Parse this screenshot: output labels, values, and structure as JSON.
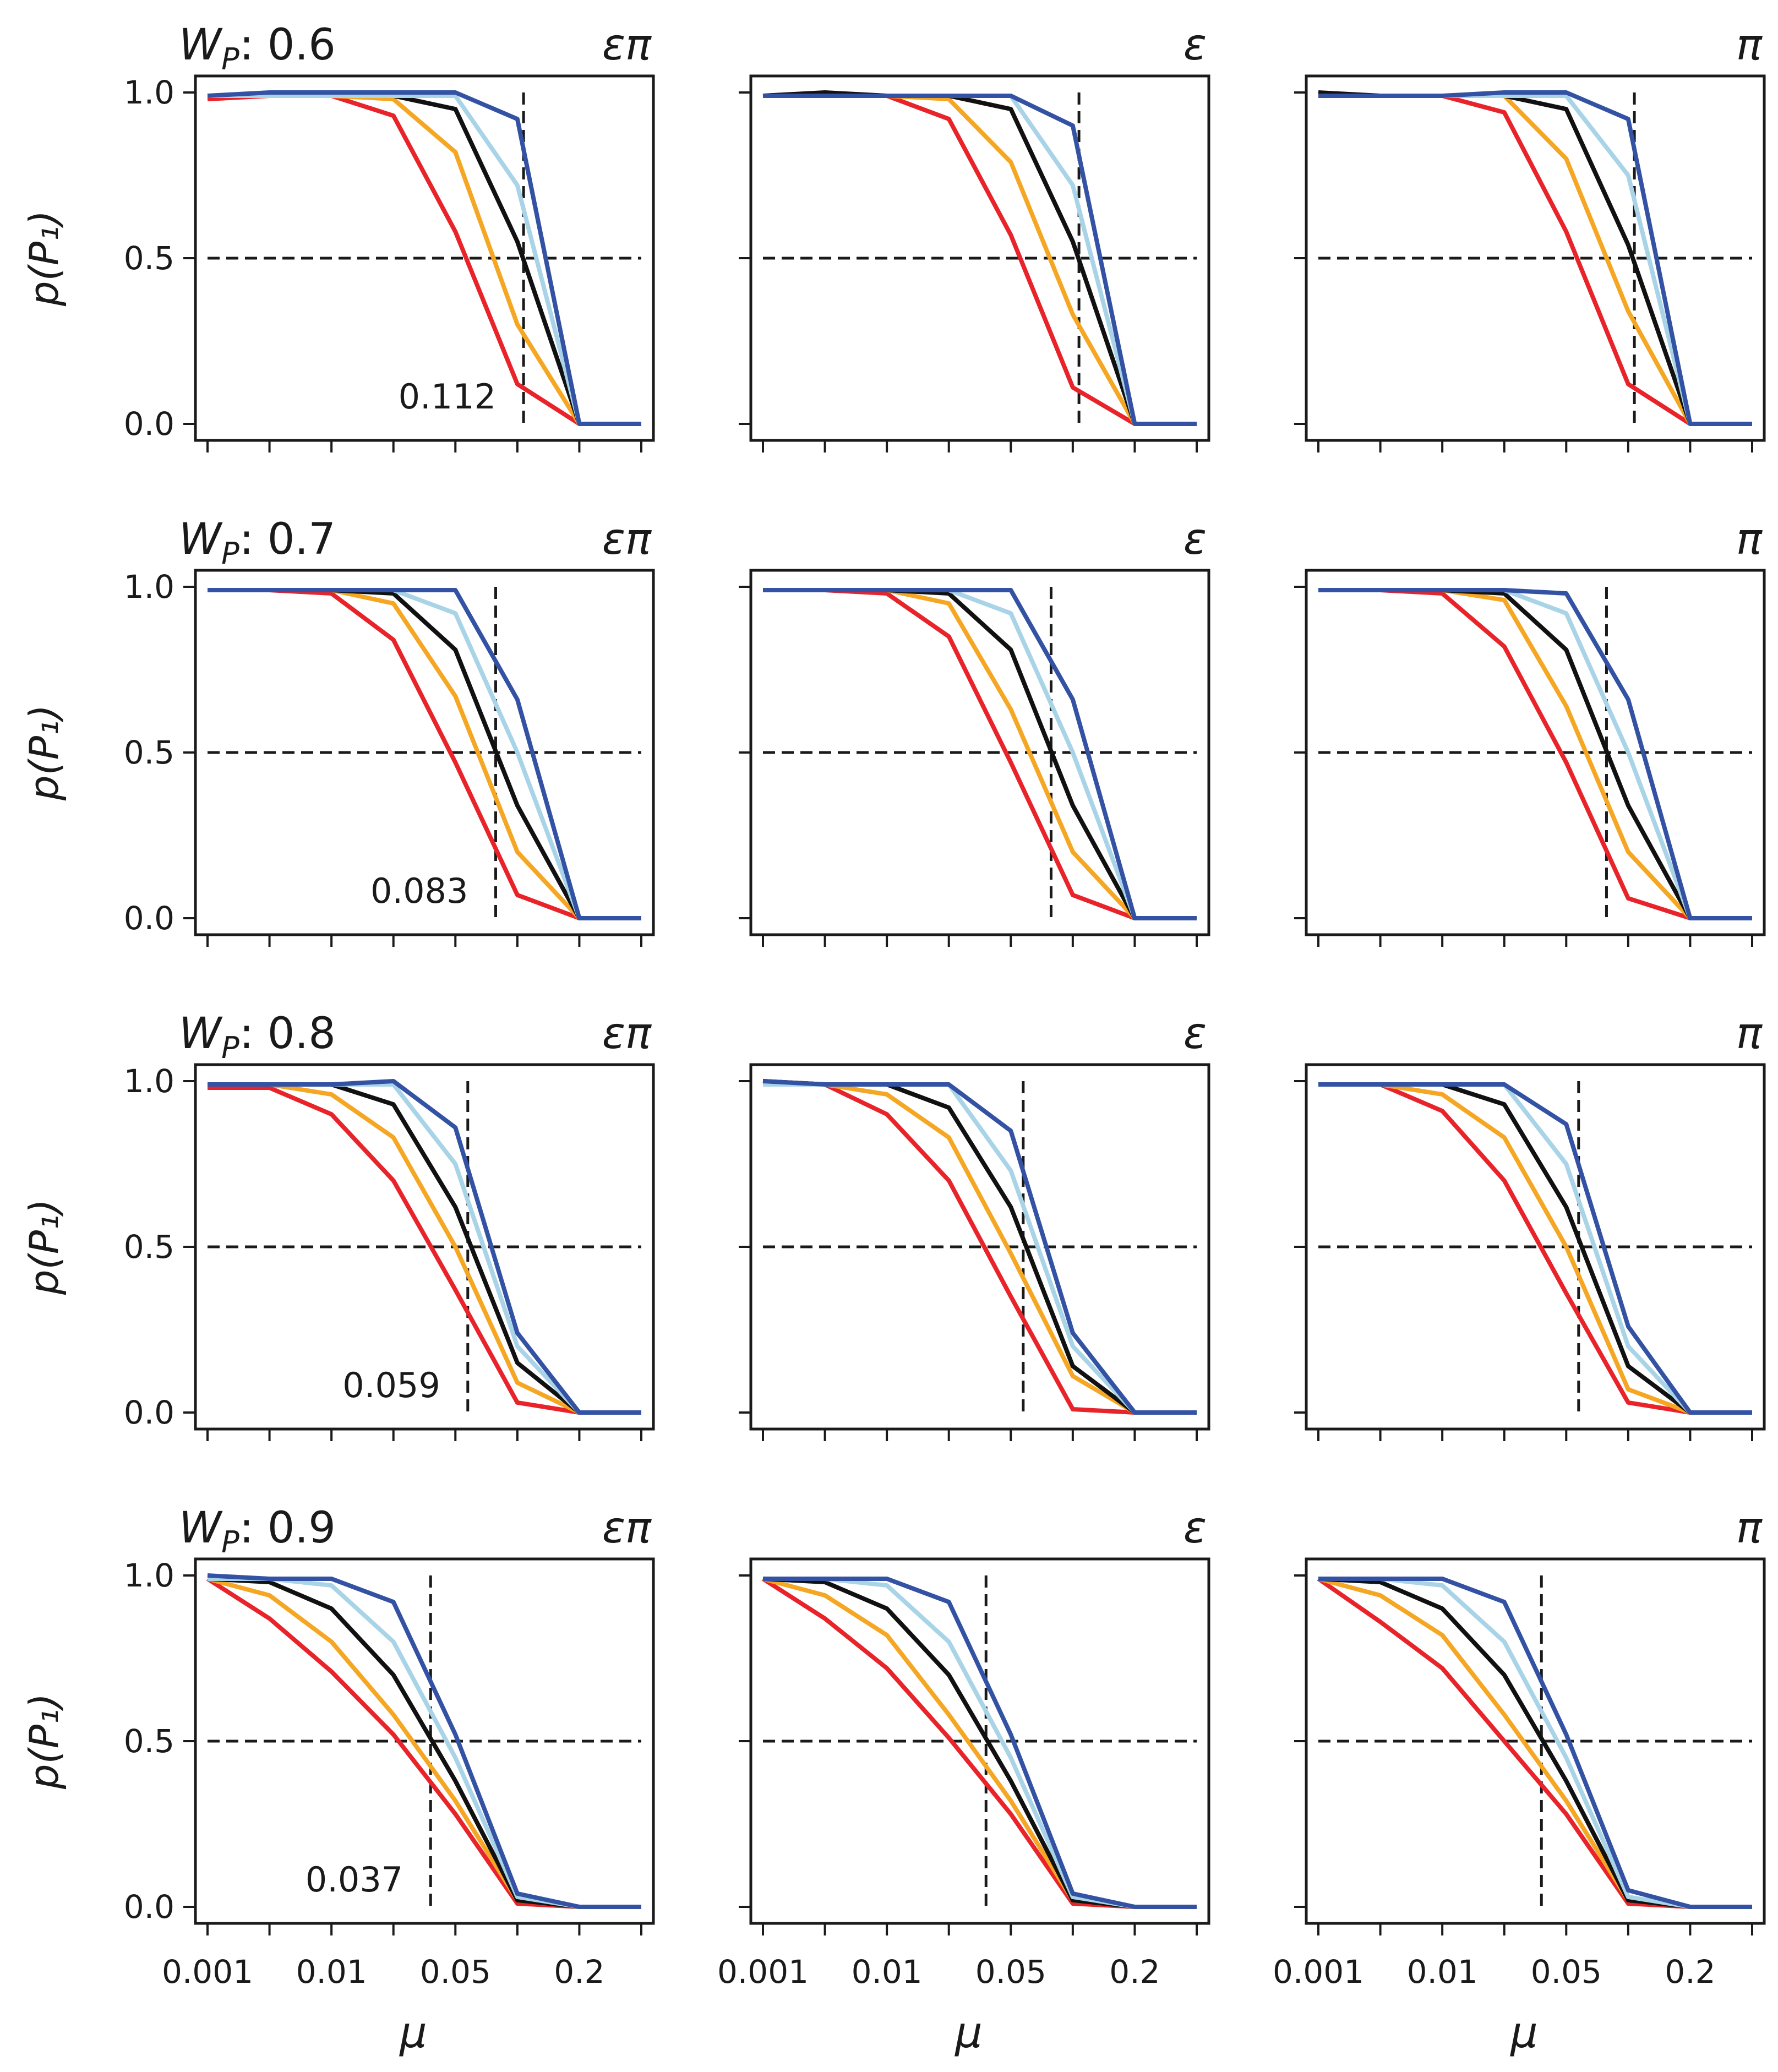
{
  "figure": {
    "rows": 4,
    "cols": 3,
    "y_axis_label": "p(P₁)",
    "x_axis_label": "μ",
    "x_tick_labels": [
      "0.001",
      "0.01",
      "0.05",
      "0.2"
    ],
    "y_tick_labels": [
      "0.0",
      "0.5",
      "1.0"
    ],
    "column_labels": [
      "επ",
      "ε",
      "π"
    ],
    "wp_prefix": "W",
    "wp_subscript": "P",
    "wp_separator": ": ",
    "series_colors": [
      "#e8232a",
      "#f5a623",
      "#111111",
      "#a9d4e8",
      "#3452a4"
    ],
    "reference_line_color": "#1a1a1a"
  },
  "chart_data": [
    {
      "type": "line",
      "wp_value": "0.6",
      "threshold": 0.112,
      "threshold_label": "0.112",
      "x_positions": [
        0,
        1,
        2,
        3,
        4,
        5,
        6,
        7
      ],
      "ylim": [
        0,
        1
      ],
      "hline": 0.5,
      "panels": [
        {
          "label": "επ",
          "vline_x": 5.1,
          "series": [
            {
              "name": "red",
              "values": [
                0.98,
                0.99,
                0.99,
                0.93,
                0.58,
                0.12,
                0.0,
                0.0
              ]
            },
            {
              "name": "orange",
              "values": [
                0.99,
                0.99,
                0.99,
                0.98,
                0.82,
                0.3,
                0.0,
                0.0
              ]
            },
            {
              "name": "black",
              "values": [
                0.99,
                0.99,
                0.99,
                0.99,
                0.95,
                0.55,
                0.0,
                0.0
              ]
            },
            {
              "name": "lightblue",
              "values": [
                0.99,
                0.99,
                0.99,
                0.99,
                0.99,
                0.72,
                0.0,
                0.0
              ]
            },
            {
              "name": "blue",
              "values": [
                0.99,
                1.0,
                1.0,
                1.0,
                1.0,
                0.92,
                0.0,
                0.0
              ]
            }
          ]
        },
        {
          "label": "ε",
          "vline_x": 5.1,
          "series": [
            {
              "name": "red",
              "values": [
                0.99,
                0.99,
                0.99,
                0.92,
                0.57,
                0.11,
                0.0,
                0.0
              ]
            },
            {
              "name": "orange",
              "values": [
                0.99,
                0.99,
                0.99,
                0.98,
                0.79,
                0.33,
                0.0,
                0.0
              ]
            },
            {
              "name": "black",
              "values": [
                0.99,
                1.0,
                0.99,
                0.99,
                0.95,
                0.55,
                0.0,
                0.0
              ]
            },
            {
              "name": "lightblue",
              "values": [
                0.99,
                0.99,
                0.99,
                0.99,
                0.99,
                0.72,
                0.0,
                0.0
              ]
            },
            {
              "name": "blue",
              "values": [
                0.99,
                0.99,
                0.99,
                0.99,
                0.99,
                0.9,
                0.0,
                0.0
              ]
            }
          ]
        },
        {
          "label": "π",
          "vline_x": 5.1,
          "series": [
            {
              "name": "red",
              "values": [
                0.99,
                0.99,
                0.99,
                0.94,
                0.58,
                0.12,
                0.0,
                0.0
              ]
            },
            {
              "name": "orange",
              "values": [
                0.99,
                0.99,
                0.99,
                0.99,
                0.8,
                0.34,
                0.0,
                0.0
              ]
            },
            {
              "name": "black",
              "values": [
                1.0,
                0.99,
                0.99,
                0.99,
                0.95,
                0.54,
                0.0,
                0.0
              ]
            },
            {
              "name": "lightblue",
              "values": [
                0.99,
                0.99,
                0.99,
                0.99,
                0.99,
                0.75,
                0.0,
                0.0
              ]
            },
            {
              "name": "blue",
              "values": [
                0.99,
                0.99,
                0.99,
                1.0,
                1.0,
                0.92,
                0.0,
                0.0
              ]
            }
          ]
        }
      ]
    },
    {
      "type": "line",
      "wp_value": "0.7",
      "threshold": 0.083,
      "threshold_label": "0.083",
      "x_positions": [
        0,
        1,
        2,
        3,
        4,
        5,
        6,
        7
      ],
      "ylim": [
        0,
        1
      ],
      "hline": 0.5,
      "panels": [
        {
          "label": "επ",
          "vline_x": 4.65,
          "series": [
            {
              "name": "red",
              "values": [
                0.99,
                0.99,
                0.98,
                0.84,
                0.47,
                0.07,
                0.0,
                0.0
              ]
            },
            {
              "name": "orange",
              "values": [
                0.99,
                0.99,
                0.99,
                0.95,
                0.67,
                0.2,
                0.0,
                0.0
              ]
            },
            {
              "name": "black",
              "values": [
                0.99,
                0.99,
                0.99,
                0.98,
                0.81,
                0.34,
                0.0,
                0.0
              ]
            },
            {
              "name": "lightblue",
              "values": [
                0.99,
                0.99,
                0.99,
                0.99,
                0.92,
                0.5,
                0.0,
                0.0
              ]
            },
            {
              "name": "blue",
              "values": [
                0.99,
                0.99,
                0.99,
                0.99,
                0.99,
                0.66,
                0.0,
                0.0
              ]
            }
          ]
        },
        {
          "label": "ε",
          "vline_x": 4.65,
          "series": [
            {
              "name": "red",
              "values": [
                0.99,
                0.99,
                0.98,
                0.85,
                0.47,
                0.07,
                0.0,
                0.0
              ]
            },
            {
              "name": "orange",
              "values": [
                0.99,
                0.99,
                0.99,
                0.95,
                0.63,
                0.2,
                0.0,
                0.0
              ]
            },
            {
              "name": "black",
              "values": [
                0.99,
                0.99,
                0.99,
                0.98,
                0.81,
                0.34,
                0.0,
                0.0
              ]
            },
            {
              "name": "lightblue",
              "values": [
                0.99,
                0.99,
                0.99,
                0.99,
                0.92,
                0.5,
                0.0,
                0.0
              ]
            },
            {
              "name": "blue",
              "values": [
                0.99,
                0.99,
                0.99,
                0.99,
                0.99,
                0.66,
                0.0,
                0.0
              ]
            }
          ]
        },
        {
          "label": "π",
          "vline_x": 4.65,
          "series": [
            {
              "name": "red",
              "values": [
                0.99,
                0.99,
                0.98,
                0.82,
                0.47,
                0.06,
                0.0,
                0.0
              ]
            },
            {
              "name": "orange",
              "values": [
                0.99,
                0.99,
                0.99,
                0.96,
                0.64,
                0.2,
                0.0,
                0.0
              ]
            },
            {
              "name": "black",
              "values": [
                0.99,
                0.99,
                0.99,
                0.98,
                0.81,
                0.34,
                0.0,
                0.0
              ]
            },
            {
              "name": "lightblue",
              "values": [
                0.99,
                0.99,
                0.99,
                0.99,
                0.92,
                0.5,
                0.0,
                0.0
              ]
            },
            {
              "name": "blue",
              "values": [
                0.99,
                0.99,
                0.99,
                0.99,
                0.98,
                0.66,
                0.0,
                0.0
              ]
            }
          ]
        }
      ]
    },
    {
      "type": "line",
      "wp_value": "0.8",
      "threshold": 0.059,
      "threshold_label": "0.059",
      "x_positions": [
        0,
        1,
        2,
        3,
        4,
        5,
        6,
        7
      ],
      "ylim": [
        0,
        1
      ],
      "hline": 0.5,
      "panels": [
        {
          "label": "επ",
          "vline_x": 4.2,
          "series": [
            {
              "name": "red",
              "values": [
                0.98,
                0.98,
                0.9,
                0.7,
                0.37,
                0.03,
                0.0,
                0.0
              ]
            },
            {
              "name": "orange",
              "values": [
                0.99,
                0.99,
                0.96,
                0.83,
                0.5,
                0.09,
                0.0,
                0.0
              ]
            },
            {
              "name": "black",
              "values": [
                0.99,
                0.99,
                0.99,
                0.93,
                0.62,
                0.15,
                0.0,
                0.0
              ]
            },
            {
              "name": "lightblue",
              "values": [
                0.99,
                0.99,
                0.99,
                0.99,
                0.75,
                0.2,
                0.0,
                0.0
              ]
            },
            {
              "name": "blue",
              "values": [
                0.99,
                0.99,
                0.99,
                1.0,
                0.86,
                0.24,
                0.0,
                0.0
              ]
            }
          ]
        },
        {
          "label": "ε",
          "vline_x": 4.2,
          "series": [
            {
              "name": "red",
              "values": [
                1.0,
                0.99,
                0.9,
                0.7,
                0.35,
                0.01,
                0.0,
                0.0
              ]
            },
            {
              "name": "orange",
              "values": [
                0.99,
                0.99,
                0.96,
                0.83,
                0.48,
                0.11,
                0.0,
                0.0
              ]
            },
            {
              "name": "black",
              "values": [
                1.0,
                0.99,
                0.99,
                0.92,
                0.62,
                0.14,
                0.0,
                0.0
              ]
            },
            {
              "name": "lightblue",
              "values": [
                0.99,
                0.99,
                0.99,
                0.99,
                0.73,
                0.2,
                0.0,
                0.0
              ]
            },
            {
              "name": "blue",
              "values": [
                1.0,
                0.99,
                0.99,
                0.99,
                0.85,
                0.24,
                0.0,
                0.0
              ]
            }
          ]
        },
        {
          "label": "π",
          "vline_x": 4.2,
          "series": [
            {
              "name": "red",
              "values": [
                0.99,
                0.99,
                0.91,
                0.7,
                0.36,
                0.03,
                0.0,
                0.0
              ]
            },
            {
              "name": "orange",
              "values": [
                0.99,
                0.99,
                0.96,
                0.83,
                0.5,
                0.07,
                0.0,
                0.0
              ]
            },
            {
              "name": "black",
              "values": [
                0.99,
                0.99,
                0.99,
                0.93,
                0.62,
                0.14,
                0.0,
                0.0
              ]
            },
            {
              "name": "lightblue",
              "values": [
                0.99,
                0.99,
                0.99,
                0.99,
                0.75,
                0.2,
                0.0,
                0.0
              ]
            },
            {
              "name": "blue",
              "values": [
                0.99,
                0.99,
                0.99,
                0.99,
                0.87,
                0.26,
                0.0,
                0.0
              ]
            }
          ]
        }
      ]
    },
    {
      "type": "line",
      "wp_value": "0.9",
      "threshold": 0.037,
      "threshold_label": "0.037",
      "x_positions": [
        0,
        1,
        2,
        3,
        4,
        5,
        6,
        7
      ],
      "ylim": [
        0,
        1
      ],
      "hline": 0.5,
      "panels": [
        {
          "label": "επ",
          "vline_x": 3.6,
          "series": [
            {
              "name": "red",
              "values": [
                0.99,
                0.87,
                0.71,
                0.52,
                0.28,
                0.01,
                0.0,
                0.0
              ]
            },
            {
              "name": "orange",
              "values": [
                0.99,
                0.94,
                0.8,
                0.58,
                0.32,
                0.02,
                0.0,
                0.0
              ]
            },
            {
              "name": "black",
              "values": [
                0.99,
                0.98,
                0.9,
                0.7,
                0.38,
                0.02,
                0.0,
                0.0
              ]
            },
            {
              "name": "lightblue",
              "values": [
                0.99,
                0.99,
                0.97,
                0.8,
                0.45,
                0.03,
                0.0,
                0.0
              ]
            },
            {
              "name": "blue",
              "values": [
                1.0,
                0.99,
                0.99,
                0.92,
                0.52,
                0.04,
                0.0,
                0.0
              ]
            }
          ]
        },
        {
          "label": "ε",
          "vline_x": 3.6,
          "series": [
            {
              "name": "red",
              "values": [
                0.99,
                0.87,
                0.72,
                0.51,
                0.28,
                0.01,
                0.0,
                0.0
              ]
            },
            {
              "name": "orange",
              "values": [
                0.99,
                0.94,
                0.82,
                0.58,
                0.32,
                0.02,
                0.0,
                0.0
              ]
            },
            {
              "name": "black",
              "values": [
                0.99,
                0.98,
                0.9,
                0.7,
                0.38,
                0.02,
                0.0,
                0.0
              ]
            },
            {
              "name": "lightblue",
              "values": [
                0.99,
                0.99,
                0.97,
                0.8,
                0.45,
                0.03,
                0.0,
                0.0
              ]
            },
            {
              "name": "blue",
              "values": [
                0.99,
                0.99,
                0.99,
                0.92,
                0.52,
                0.04,
                0.0,
                0.0
              ]
            }
          ]
        },
        {
          "label": "π",
          "vline_x": 3.6,
          "series": [
            {
              "name": "red",
              "values": [
                0.99,
                0.86,
                0.72,
                0.5,
                0.28,
                0.01,
                0.0,
                0.0
              ]
            },
            {
              "name": "orange",
              "values": [
                0.99,
                0.94,
                0.82,
                0.58,
                0.32,
                0.02,
                0.0,
                0.0
              ]
            },
            {
              "name": "black",
              "values": [
                0.99,
                0.98,
                0.9,
                0.7,
                0.38,
                0.02,
                0.0,
                0.0
              ]
            },
            {
              "name": "lightblue",
              "values": [
                0.99,
                0.99,
                0.97,
                0.8,
                0.45,
                0.03,
                0.0,
                0.0
              ]
            },
            {
              "name": "blue",
              "values": [
                0.99,
                0.99,
                0.99,
                0.92,
                0.52,
                0.05,
                0.0,
                0.0
              ]
            }
          ]
        }
      ]
    }
  ]
}
